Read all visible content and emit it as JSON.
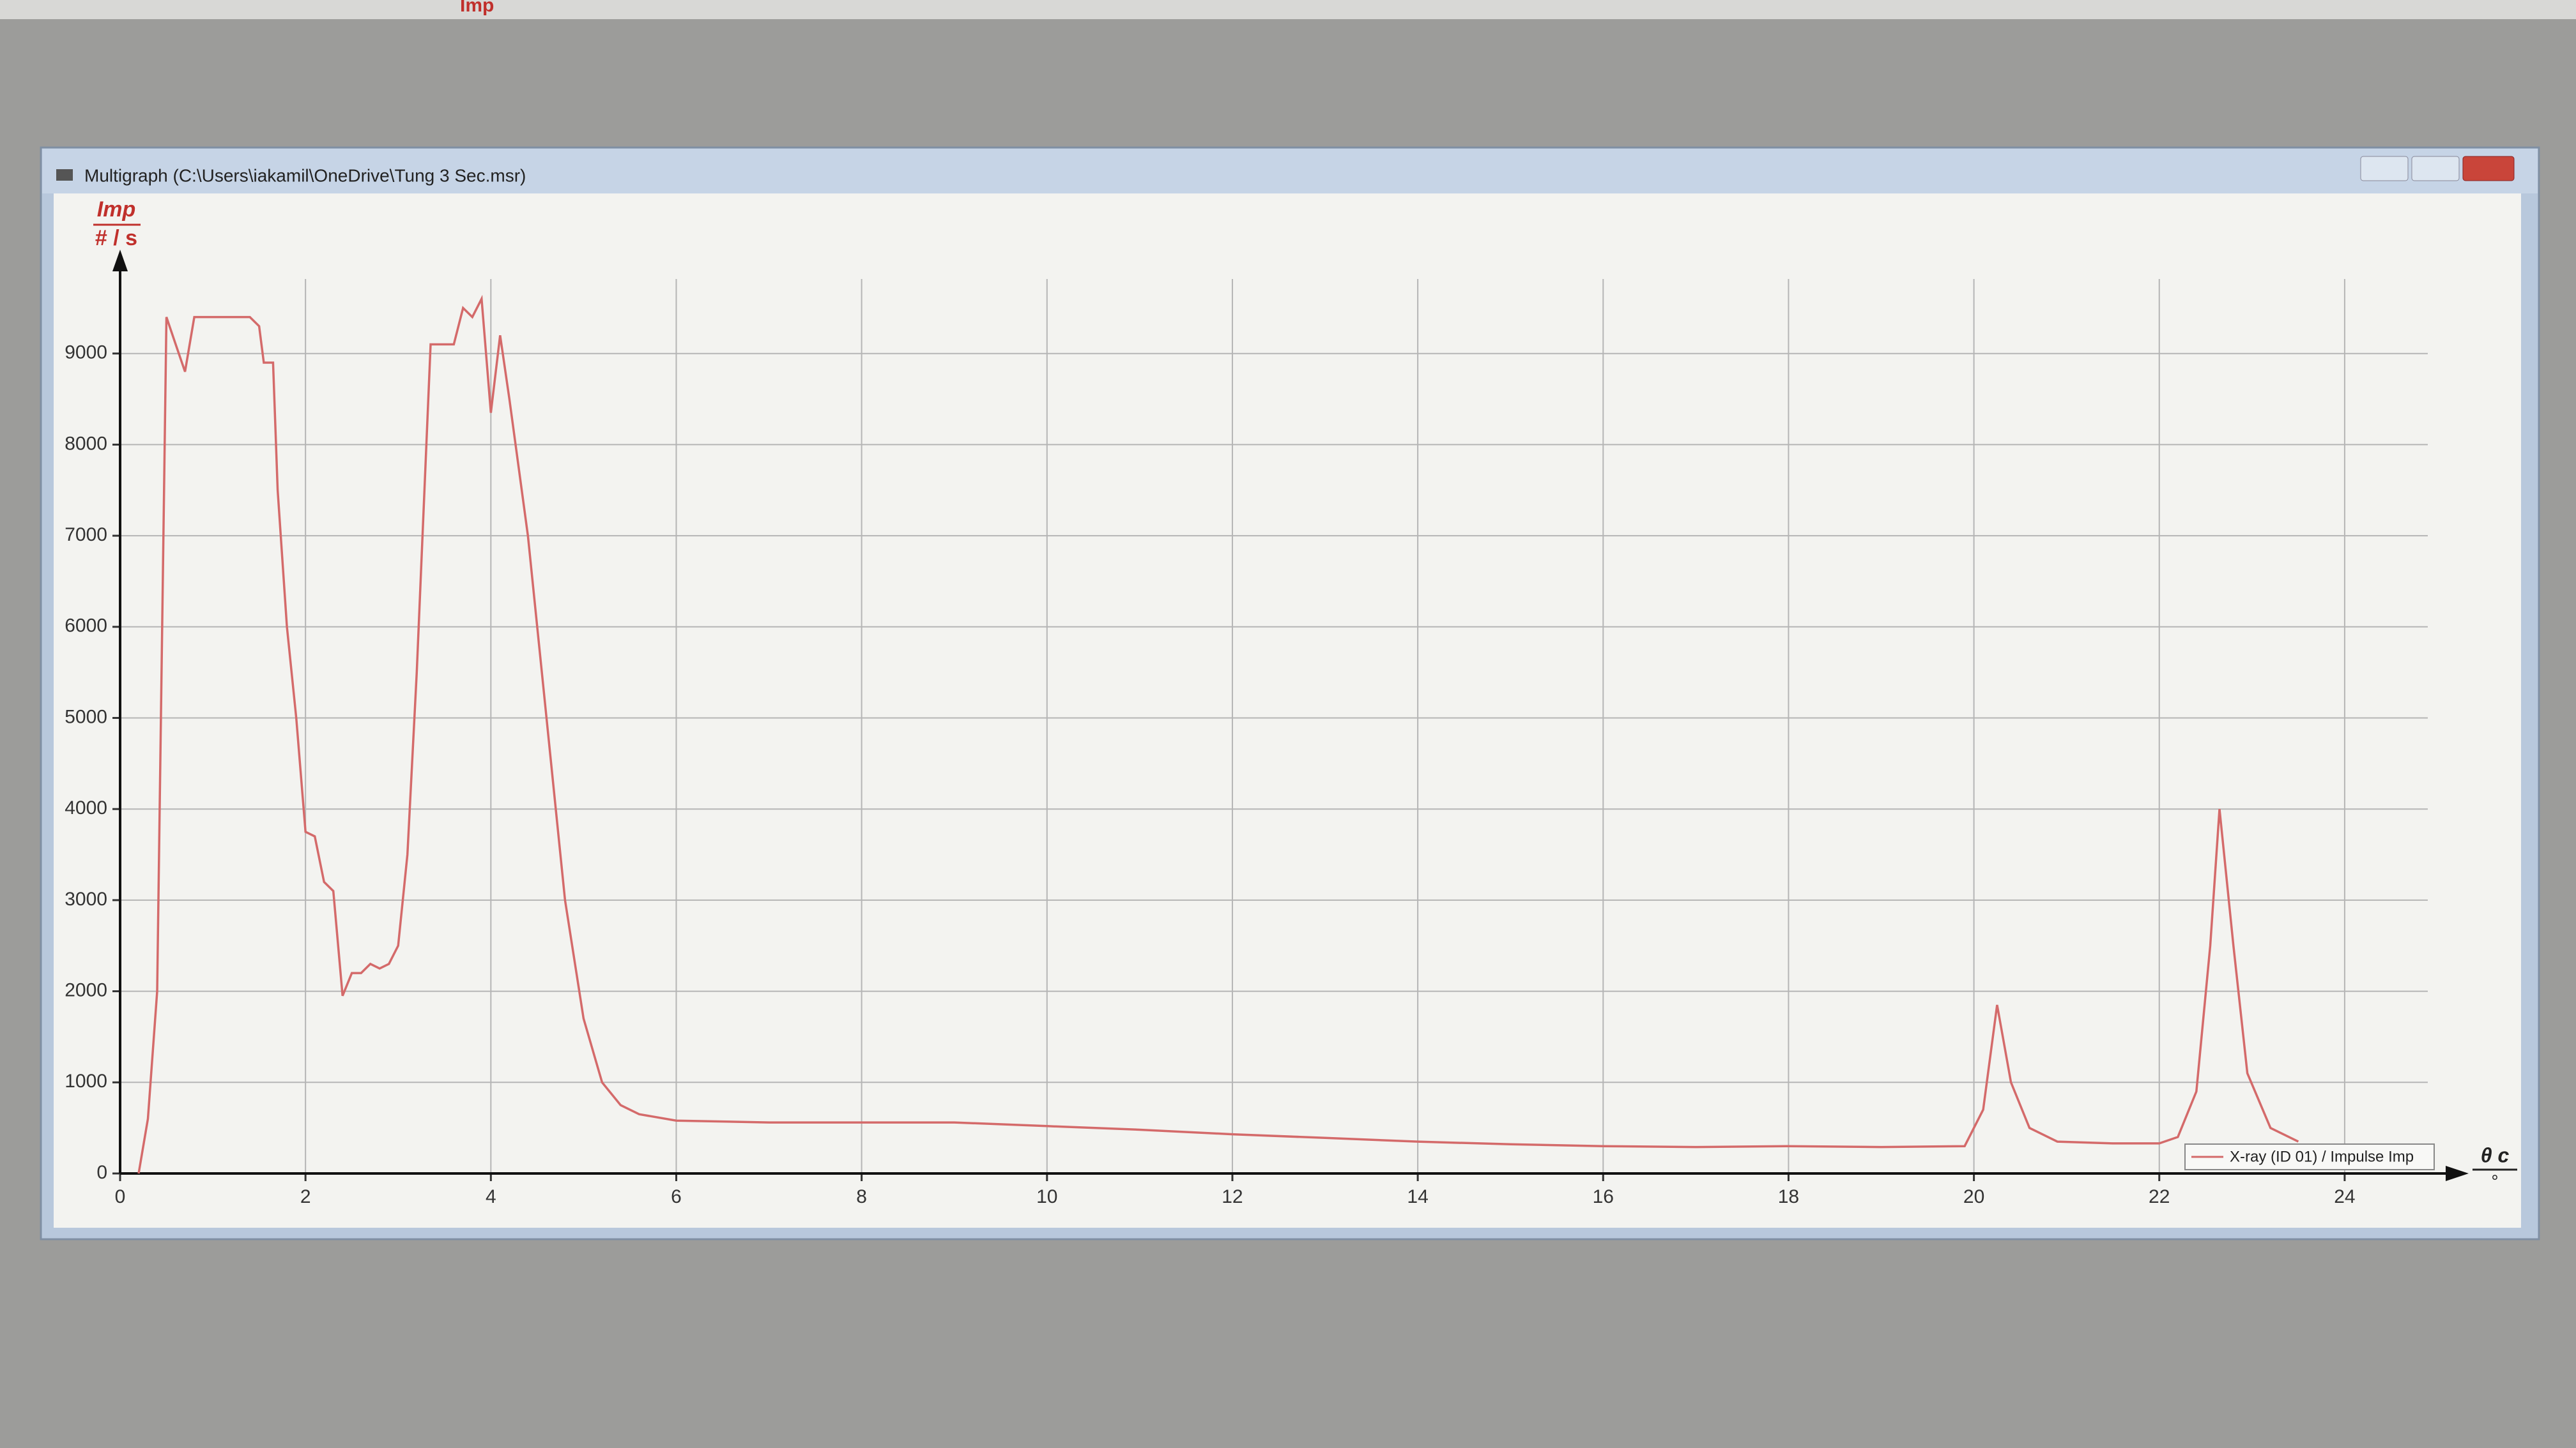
{
  "toolbar": {
    "label": "Imp"
  },
  "window": {
    "title": "Multigraph (C:\\Users\\iakamil\\OneDrive\\Tung 3 Sec.msr)"
  },
  "chart_data": {
    "type": "line",
    "y_label": "Imp",
    "y_unit": "# / s",
    "x_label": "θ c",
    "x_unit": "°",
    "x": [
      0.2,
      0.3,
      0.4,
      0.5,
      0.6,
      0.7,
      0.8,
      1.0,
      1.2,
      1.4,
      1.5,
      1.55,
      1.65,
      1.7,
      1.8,
      1.9,
      2.0,
      2.1,
      2.2,
      2.3,
      2.4,
      2.5,
      2.6,
      2.7,
      2.8,
      2.9,
      3.0,
      3.1,
      3.2,
      3.35,
      3.5,
      3.6,
      3.7,
      3.8,
      3.9,
      4.0,
      4.1,
      4.2,
      4.4,
      4.6,
      4.8,
      5.0,
      5.2,
      5.4,
      5.6,
      6,
      7,
      8,
      9,
      10,
      11,
      12,
      13,
      14,
      15,
      16,
      17,
      18,
      19,
      19.9,
      20.1,
      20.25,
      20.4,
      20.6,
      20.9,
      21.5,
      22,
      22.2,
      22.4,
      22.55,
      22.65,
      22.8,
      22.95,
      23.2,
      23.5
    ],
    "series": [
      {
        "name": "X-ray (ID 01) / Impulse Imp",
        "color": "#d46a6a",
        "values": [
          0,
          600,
          2000,
          9400,
          9100,
          8800,
          9400,
          9400,
          9400,
          9400,
          9300,
          8900,
          8900,
          7500,
          6000,
          5000,
          3750,
          3700,
          3200,
          3100,
          1950,
          2200,
          2200,
          2300,
          2250,
          2300,
          2500,
          3500,
          5500,
          9100,
          9100,
          9100,
          9500,
          9400,
          9600,
          8350,
          9200,
          8500,
          7000,
          5000,
          3000,
          1700,
          1000,
          750,
          650,
          580,
          560,
          560,
          560,
          520,
          480,
          430,
          390,
          350,
          320,
          300,
          290,
          300,
          290,
          300,
          700,
          1850,
          1000,
          500,
          350,
          330,
          330,
          400,
          900,
          2500,
          4000,
          2500,
          1100,
          500,
          350
        ]
      }
    ],
    "xlim": [
      0,
      25.2
    ],
    "ylim": [
      0,
      10000
    ],
    "xticks": [
      0,
      2,
      4,
      6,
      8,
      10,
      12,
      14,
      16,
      18,
      20,
      22,
      24
    ],
    "yticks": [
      0,
      1000,
      2000,
      3000,
      4000,
      5000,
      6000,
      7000,
      8000,
      9000
    ],
    "grid": true
  }
}
